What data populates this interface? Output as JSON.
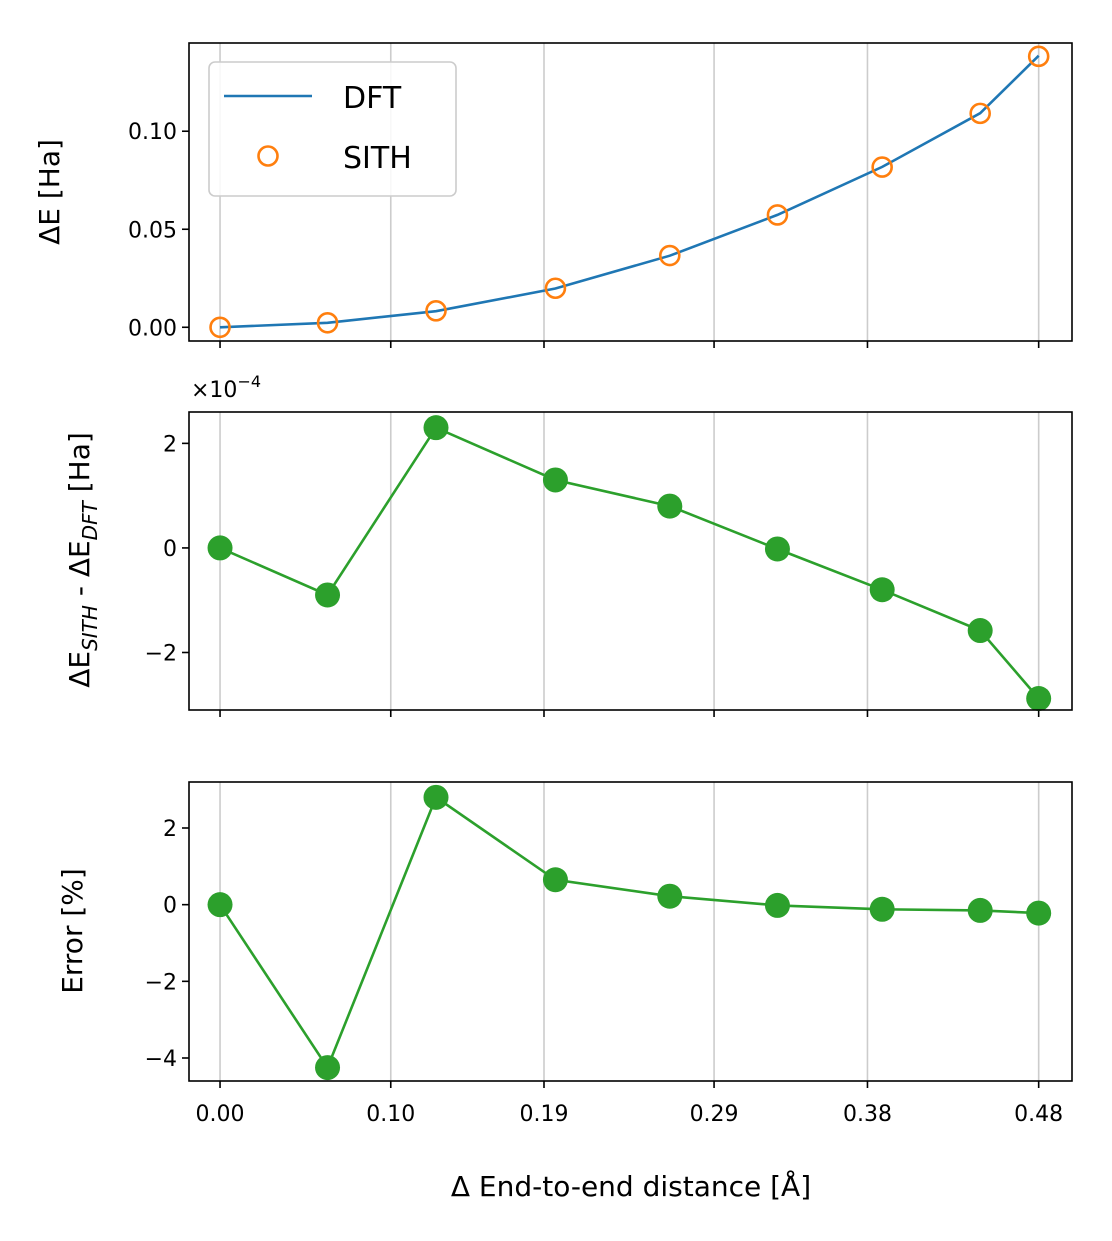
{
  "chart_data": [
    {
      "type": "line",
      "panel": "top",
      "ylabel": "ΔE [Ha]",
      "ylim": [
        -0.007,
        0.145
      ],
      "yticks": [
        0.0,
        0.05,
        0.1
      ],
      "ytick_labels": [
        "0.00",
        "0.05",
        "0.10"
      ],
      "x": [
        0.0,
        0.0658,
        0.1322,
        0.2053,
        0.2753,
        0.3412,
        0.4053,
        0.4653,
        0.5011
      ],
      "series": [
        {
          "name": "DFT",
          "style": "line",
          "color": "#1f77b4",
          "values": [
            0.0,
            0.0023,
            0.0082,
            0.0198,
            0.0365,
            0.0573,
            0.0818,
            0.1092,
            0.1385
          ]
        },
        {
          "name": "SITH",
          "style": "open-circle",
          "color": "#ff7f0e",
          "values": [
            0.0,
            0.0023,
            0.0084,
            0.0199,
            0.0366,
            0.0573,
            0.0817,
            0.1091,
            0.1382
          ]
        }
      ],
      "legend": {
        "position": "top-left",
        "entries": [
          "DFT",
          "SITH"
        ]
      }
    },
    {
      "type": "line",
      "panel": "middle",
      "ylabel_parts": [
        "ΔE",
        "SITH",
        " - ΔE",
        "DFT",
        " [Ha]"
      ],
      "scale_prefix": "×10",
      "scale_exponent": "−4",
      "ylim": [
        -3.1,
        2.6
      ],
      "yticks": [
        -2,
        0,
        2
      ],
      "ytick_labels": [
        "−2",
        "0",
        "2"
      ],
      "x": [
        0.0,
        0.0658,
        0.1322,
        0.2053,
        0.2753,
        0.3412,
        0.4053,
        0.4653,
        0.5011
      ],
      "series": [
        {
          "name": "ΔE_SITH - ΔE_DFT",
          "style": "line-marker",
          "color": "#2ca02c",
          "values": [
            0.0,
            -0.9,
            2.3,
            1.3,
            0.8,
            -0.02,
            -0.8,
            -1.58,
            -2.88
          ]
        }
      ]
    },
    {
      "type": "line",
      "panel": "bottom",
      "ylabel": "Error [%]",
      "xlabel": "Δ End-to-end distance [Å]",
      "ylim": [
        -4.6,
        3.2
      ],
      "yticks": [
        -4,
        -2,
        0,
        2
      ],
      "ytick_labels": [
        "−4",
        "−2",
        "0",
        "2"
      ],
      "xticks": [
        0.0,
        0.1045,
        0.1983,
        0.3024,
        0.3963,
        0.5011
      ],
      "xtick_labels": [
        "0.00",
        "0.10",
        "0.19",
        "0.29",
        "0.38",
        "0.48"
      ],
      "x": [
        0.0,
        0.0658,
        0.1322,
        0.2053,
        0.2753,
        0.3412,
        0.4053,
        0.4653,
        0.5011
      ],
      "series": [
        {
          "name": "Error",
          "style": "line-marker",
          "color": "#2ca02c",
          "values": [
            0.0,
            -4.25,
            2.8,
            0.65,
            0.22,
            -0.02,
            -0.12,
            -0.15,
            -0.22
          ]
        }
      ]
    }
  ],
  "colors": {
    "grid": "#cccccc",
    "frame": "#000000",
    "legend_edge": "#cccccc"
  }
}
